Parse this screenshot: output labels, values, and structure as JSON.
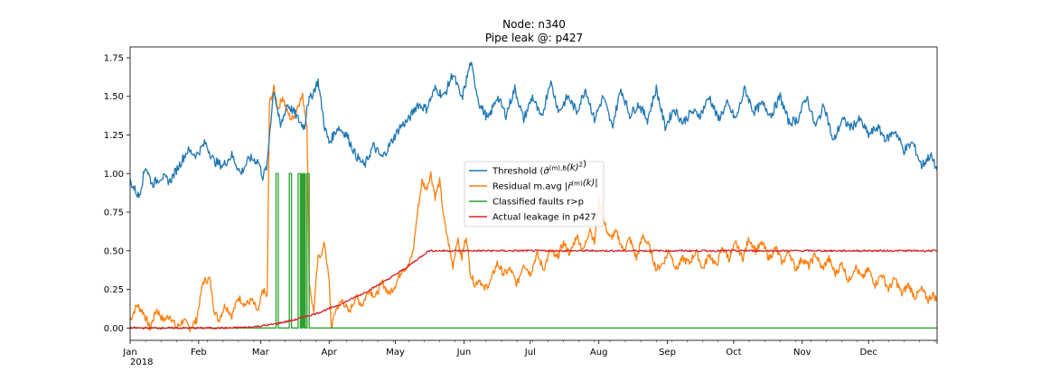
{
  "chart_data": {
    "type": "line",
    "title": "Node: n340",
    "subtitle": "Pipe leak @: p427",
    "xlabel": "",
    "ylabel": "",
    "x_ticks": [
      "Jan\n2018",
      "Feb",
      "Mar",
      "Apr",
      "May",
      "Jun",
      "Jul",
      "Aug",
      "Sep",
      "Oct",
      "Nov",
      "Dec"
    ],
    "x_tick_days": [
      0,
      31,
      59,
      90,
      120,
      151,
      181,
      212,
      243,
      273,
      304,
      334
    ],
    "xlim": [
      0,
      365
    ],
    "ylim": [
      -0.08,
      1.82
    ],
    "y_ticks": [
      "0.00",
      "0.25",
      "0.50",
      "0.75",
      "1.00",
      "1.25",
      "1.50",
      "1.75"
    ],
    "grid": false,
    "legend_position": "center",
    "series": [
      {
        "name": "Threshold (σ̂(m),B(k)²)",
        "legend_main": "Threshold (",
        "legend_sym": "σ̂",
        "legend_sup": "(m),B",
        "legend_arg": "(k)",
        "legend_sq": "2",
        "legend_close": ")",
        "color": "#1f77b4",
        "x": [
          0,
          4,
          7,
          10,
          14,
          18,
          22,
          26,
          30,
          34,
          38,
          42,
          46,
          50,
          54,
          58,
          60,
          62,
          63,
          65,
          68,
          71,
          74,
          77,
          79,
          80,
          82,
          85,
          88,
          90,
          94,
          98,
          102,
          106,
          110,
          114,
          118,
          122,
          126,
          130,
          134,
          138,
          142,
          146,
          150,
          154,
          158,
          162,
          166,
          170,
          174,
          178,
          182,
          186,
          190,
          194,
          198,
          202,
          206,
          210,
          214,
          218,
          222,
          226,
          230,
          234,
          238,
          242,
          246,
          250,
          254,
          258,
          262,
          266,
          270,
          274,
          278,
          282,
          286,
          290,
          294,
          298,
          302,
          306,
          310,
          314,
          318,
          322,
          326,
          330,
          334,
          338,
          342,
          346,
          350,
          354,
          358,
          362,
          365
        ],
        "y": [
          0.95,
          0.85,
          1.05,
          0.93,
          0.98,
          0.95,
          1.05,
          1.15,
          1.12,
          1.2,
          1.08,
          1.05,
          1.12,
          1.0,
          1.1,
          1.08,
          0.98,
          1.05,
          1.25,
          1.55,
          1.3,
          1.45,
          1.4,
          1.33,
          1.3,
          1.45,
          1.5,
          1.6,
          1.3,
          1.2,
          1.3,
          1.25,
          1.12,
          1.05,
          1.18,
          1.1,
          1.2,
          1.3,
          1.35,
          1.45,
          1.42,
          1.55,
          1.5,
          1.65,
          1.48,
          1.72,
          1.45,
          1.35,
          1.5,
          1.38,
          1.55,
          1.35,
          1.5,
          1.35,
          1.6,
          1.4,
          1.5,
          1.4,
          1.55,
          1.35,
          1.5,
          1.3,
          1.55,
          1.38,
          1.45,
          1.35,
          1.55,
          1.3,
          1.42,
          1.33,
          1.4,
          1.38,
          1.5,
          1.35,
          1.45,
          1.35,
          1.55,
          1.4,
          1.45,
          1.38,
          1.5,
          1.33,
          1.35,
          1.5,
          1.3,
          1.45,
          1.2,
          1.35,
          1.3,
          1.35,
          1.25,
          1.3,
          1.22,
          1.28,
          1.15,
          1.2,
          1.05,
          1.12,
          1.02
        ]
      },
      {
        "name": "Residual m.avg |r̃(m)(k)|",
        "legend_main": "Residual m.avg |",
        "legend_sym": "r̃",
        "legend_sup": "(m)",
        "legend_arg": "(k)|",
        "legend_sq": "",
        "legend_close": "",
        "color": "#ff7f0e",
        "x": [
          0,
          3,
          6,
          9,
          12,
          15,
          18,
          21,
          24,
          27,
          30,
          33,
          36,
          38,
          40,
          43,
          46,
          49,
          52,
          55,
          58,
          60,
          62,
          63,
          65,
          67,
          69,
          71,
          73,
          75,
          76,
          78,
          80,
          81,
          83,
          85,
          87,
          88,
          90,
          91,
          93,
          96,
          99,
          102,
          105,
          108,
          111,
          114,
          117,
          120,
          123,
          126,
          128,
          130,
          132,
          134,
          136,
          138,
          140,
          142,
          144,
          146,
          148,
          150,
          152,
          154,
          156,
          158,
          160,
          163,
          166,
          169,
          172,
          175,
          178,
          181,
          184,
          187,
          190,
          193,
          196,
          199,
          202,
          205,
          208,
          210,
          212,
          214,
          217,
          220,
          223,
          226,
          229,
          232,
          235,
          238,
          241,
          244,
          247,
          250,
          253,
          256,
          259,
          262,
          265,
          268,
          271,
          274,
          277,
          280,
          283,
          286,
          289,
          292,
          295,
          298,
          301,
          304,
          307,
          310,
          313,
          316,
          319,
          322,
          325,
          328,
          331,
          334,
          337,
          340,
          343,
          346,
          349,
          352,
          355,
          358,
          361,
          363,
          365
        ],
        "y": [
          0.05,
          0.15,
          0.1,
          0.0,
          0.12,
          0.05,
          0.08,
          0.0,
          0.05,
          0.0,
          0.05,
          0.3,
          0.32,
          0.12,
          0.05,
          0.15,
          0.08,
          0.2,
          0.15,
          0.18,
          0.1,
          0.25,
          0.2,
          1.45,
          1.55,
          1.42,
          1.5,
          1.4,
          1.35,
          1.4,
          1.45,
          1.5,
          1.32,
          0.3,
          0.1,
          0.45,
          0.5,
          0.55,
          0.3,
          0.0,
          0.12,
          0.18,
          0.1,
          0.2,
          0.15,
          0.25,
          0.2,
          0.3,
          0.22,
          0.28,
          0.38,
          0.4,
          0.5,
          0.75,
          0.95,
          0.9,
          1.0,
          0.85,
          0.95,
          0.7,
          0.55,
          0.4,
          0.58,
          0.45,
          0.6,
          0.35,
          0.28,
          0.32,
          0.25,
          0.3,
          0.42,
          0.35,
          0.38,
          0.28,
          0.42,
          0.35,
          0.48,
          0.38,
          0.5,
          0.45,
          0.55,
          0.48,
          0.6,
          0.5,
          0.65,
          0.55,
          0.82,
          0.7,
          0.58,
          0.62,
          0.5,
          0.58,
          0.45,
          0.6,
          0.52,
          0.38,
          0.42,
          0.5,
          0.38,
          0.45,
          0.42,
          0.5,
          0.38,
          0.48,
          0.4,
          0.52,
          0.45,
          0.55,
          0.45,
          0.58,
          0.5,
          0.55,
          0.45,
          0.52,
          0.42,
          0.5,
          0.38,
          0.45,
          0.4,
          0.48,
          0.38,
          0.45,
          0.35,
          0.42,
          0.3,
          0.4,
          0.32,
          0.38,
          0.28,
          0.35,
          0.25,
          0.32,
          0.22,
          0.28,
          0.2,
          0.25,
          0.18,
          0.22,
          0.18
        ]
      },
      {
        "name": "Classified faults r>p",
        "color": "#2ca02c",
        "x": [
          0,
          66,
          66,
          67,
          67,
          72,
          72,
          73,
          73,
          76,
          76,
          77,
          77,
          78,
          78,
          79,
          79,
          80,
          80,
          81,
          81,
          365
        ],
        "y": [
          0,
          0,
          1,
          1,
          0,
          0,
          1,
          1,
          0,
          0,
          1,
          1,
          0,
          0,
          1,
          1,
          0,
          0,
          1,
          1,
          0,
          0
        ],
        "bands": [
          [
            77,
            79.5
          ]
        ]
      },
      {
        "name": "Actual leakage in p427",
        "color": "#d62728",
        "x": [
          0,
          45,
          55,
          65,
          75,
          85,
          95,
          105,
          115,
          125,
          130,
          135,
          200,
          260,
          320,
          365
        ],
        "y": [
          0.0,
          0.0,
          0.006,
          0.024,
          0.055,
          0.098,
          0.153,
          0.221,
          0.3,
          0.392,
          0.445,
          0.5,
          0.5,
          0.5,
          0.5,
          0.5
        ]
      }
    ]
  }
}
